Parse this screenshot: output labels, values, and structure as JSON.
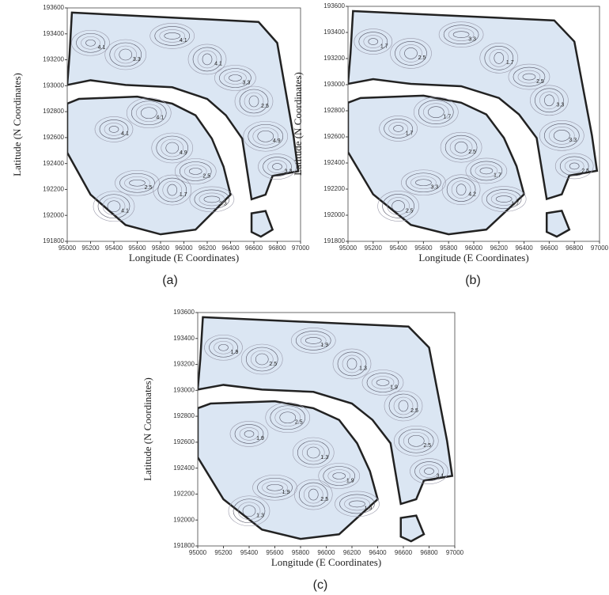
{
  "chart_data": [
    {
      "type": "contour",
      "panel_label": "(a)",
      "xlabel": "Longitude (E Coordinates)",
      "ylabel": "Latitude (N Coordinates)",
      "xlim": [
        95000,
        97000
      ],
      "ylim": [
        191800,
        193600
      ],
      "xticks": [
        95000,
        95200,
        95400,
        95600,
        95800,
        96000,
        96200,
        96400,
        96600,
        96800,
        97000
      ],
      "yticks": [
        191800,
        192000,
        192200,
        192400,
        192600,
        192800,
        193000,
        193200,
        193400,
        193600
      ],
      "contour_labels": [
        4.1,
        3.3,
        4.1,
        4.1,
        3.3,
        4.1,
        4.1,
        4.9,
        2.5,
        1.7,
        2.5,
        4.9,
        3.3,
        4.1,
        3.3,
        2.5
      ]
    },
    {
      "type": "contour",
      "panel_label": "(b)",
      "xlabel": "Longitude (E Coordinates)",
      "ylabel": "Latitude (N Coordinates)",
      "xlim": [
        95000,
        97000
      ],
      "ylim": [
        191800,
        193600
      ],
      "xticks": [
        95000,
        95200,
        95400,
        95600,
        95800,
        96000,
        96200,
        96400,
        96600,
        96800,
        97000
      ],
      "yticks": [
        191800,
        192000,
        192200,
        192400,
        192600,
        192800,
        193000,
        193200,
        193400,
        193600
      ],
      "contour_labels": [
        1.7,
        2.5,
        3.3,
        1.7,
        2.5,
        1.7,
        1.7,
        2.5,
        3.3,
        4.2,
        1.7,
        3.3,
        2.5,
        2.5,
        1.7,
        3.3
      ]
    },
    {
      "type": "contour",
      "panel_label": "(c)",
      "xlabel": "Longitude (E Coordinates)",
      "ylabel": "Latitude (N Coordinates)",
      "xlim": [
        95000,
        97000
      ],
      "ylim": [
        191800,
        193600
      ],
      "xticks": [
        95000,
        95200,
        95400,
        95600,
        95800,
        96000,
        96200,
        96400,
        96600,
        96800,
        97000
      ],
      "yticks": [
        191800,
        192000,
        192200,
        192400,
        192600,
        192800,
        193000,
        193200,
        193400,
        193600
      ],
      "contour_labels": [
        1.9,
        2.5,
        1.9,
        1.3,
        1.9,
        2.5,
        1.9,
        1.3,
        1.9,
        2.5,
        1.9,
        2.5,
        3.1,
        1.3,
        1.9,
        2.5
      ]
    }
  ]
}
